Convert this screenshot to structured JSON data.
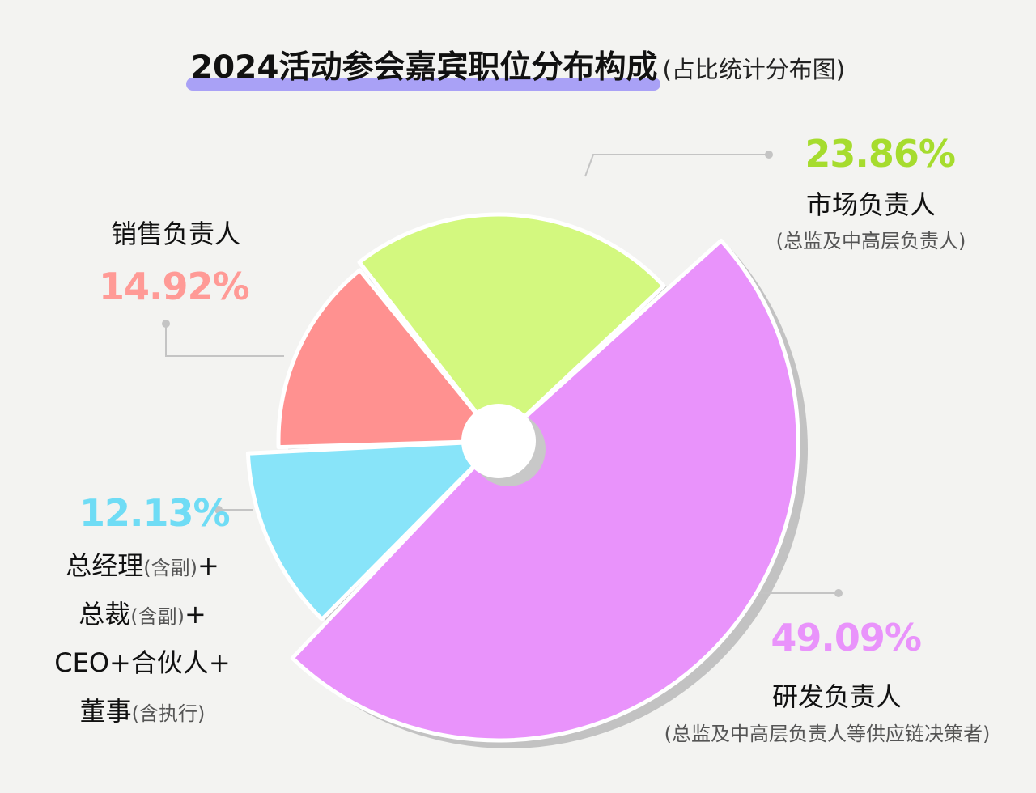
{
  "title": {
    "main": "2024活动参会嘉宾职位分布构成",
    "sub": "(占比统计分布图)"
  },
  "chart_data": {
    "type": "pie",
    "title": "2024活动参会嘉宾职位分布构成",
    "subtitle": "(占比统计分布图)",
    "unit": "%",
    "slices": [
      {
        "name": "市场负责人",
        "note": "(总监及中高层负责人)",
        "value": 23.86,
        "label": "23.86%",
        "color": "#d3f87f",
        "label_color": "#a6dc2e"
      },
      {
        "name": "研发负责人",
        "note": "(总监及中高层负责人等供应链决策者)",
        "value": 49.09,
        "label": "49.09%",
        "color": "#e993fb",
        "label_color": "#e993fb"
      },
      {
        "name": "总经理(含副)+总裁(含副)+CEO+合伙人+董事(含执行)",
        "value": 12.13,
        "label": "12.13%",
        "color": "#88e4f9",
        "label_color": "#6fdcf5",
        "label_lines": [
          {
            "text": "总经理",
            "note": "(含副)",
            "suffix": "+"
          },
          {
            "text": "总裁",
            "note": "(含副)",
            "suffix": "+"
          },
          {
            "text": "CEO+合伙人+",
            "note": "",
            "suffix": ""
          },
          {
            "text": "董事",
            "note": "(含执行)",
            "suffix": ""
          }
        ]
      },
      {
        "name": "销售负责人",
        "value": 14.92,
        "label": "14.92%",
        "color": "#ff9190",
        "label_color": "#ff9a96"
      }
    ]
  }
}
